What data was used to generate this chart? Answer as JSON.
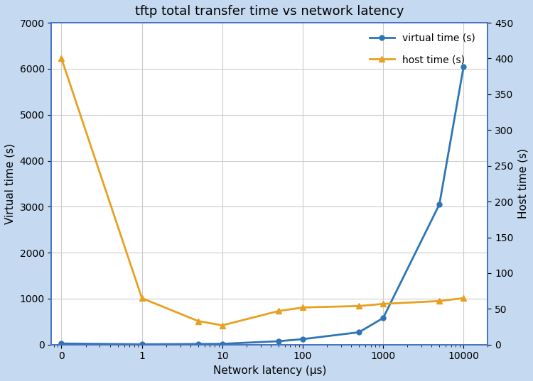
{
  "title": "tftp total transfer time vs network latency",
  "xlabel": "Network latency (μs)",
  "ylabel_left": "Virtual time (s)",
  "ylabel_right": "Host time (s)",
  "x": [
    0.1,
    1,
    5,
    10,
    50,
    100,
    500,
    1000,
    5000,
    10000
  ],
  "virtual_time": [
    25,
    8,
    15,
    18,
    75,
    120,
    270,
    580,
    3050,
    6050
  ],
  "host_time": [
    400,
    65,
    33,
    27,
    47,
    52,
    54,
    57,
    61,
    65
  ],
  "virtual_color": "#2e75b6",
  "host_color": "#e8a020",
  "ylim_left": [
    0,
    7000
  ],
  "ylim_right": [
    0,
    450
  ],
  "yticks_left": [
    0,
    1000,
    2000,
    3000,
    4000,
    5000,
    6000,
    7000
  ],
  "yticks_right": [
    0,
    50,
    100,
    150,
    200,
    250,
    300,
    350,
    400,
    450
  ],
  "xtick_labels": [
    "0",
    "1",
    "10",
    "100",
    "1000",
    "10000"
  ],
  "xtick_positions": [
    0.1,
    1,
    10,
    100,
    1000,
    10000
  ],
  "legend_virtual": "virtual time (s)",
  "legend_host": "host time (s)",
  "bg_color": "#ffffff",
  "grid_color": "#cccccc",
  "border_color": "#4472c4",
  "figwidth": 7.5,
  "figheight": 5.37,
  "dpi": 100
}
